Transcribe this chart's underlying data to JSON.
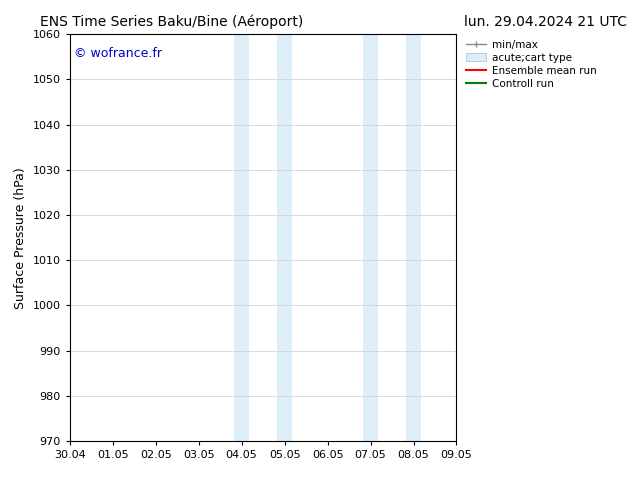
{
  "title_left": "ENS Time Series Baku/Bine (Aéroport)",
  "title_right": "lun. 29.04.2024 21 UTC",
  "ylabel": "Surface Pressure (hPa)",
  "watermark": "© wofrance.fr",
  "ylim": [
    970,
    1060
  ],
  "yticks": [
    970,
    980,
    990,
    1000,
    1010,
    1020,
    1030,
    1040,
    1050,
    1060
  ],
  "xtick_labels": [
    "30.04",
    "01.05",
    "02.05",
    "03.05",
    "04.05",
    "05.05",
    "06.05",
    "07.05",
    "08.05",
    "09.05"
  ],
  "xlim": [
    0,
    9
  ],
  "shaded_regions": [
    {
      "xmin": 3.83,
      "xmax": 4.17,
      "color": "#ddeef8"
    },
    {
      "xmin": 4.83,
      "xmax": 5.17,
      "color": "#ddeef8"
    },
    {
      "xmin": 6.83,
      "xmax": 7.17,
      "color": "#ddeef8"
    },
    {
      "xmin": 7.83,
      "xmax": 8.17,
      "color": "#ddeef8"
    }
  ],
  "legend_entries": [
    {
      "label": "min/max"
    },
    {
      "label": "acute;cart type"
    },
    {
      "label": "Ensemble mean run"
    },
    {
      "label": "Controll run"
    }
  ],
  "background_color": "#ffffff",
  "grid_color": "#cccccc",
  "title_fontsize": 10,
  "watermark_color": "#0000cc",
  "watermark_fontsize": 9,
  "axis_fontsize": 8,
  "ylabel_fontsize": 9
}
